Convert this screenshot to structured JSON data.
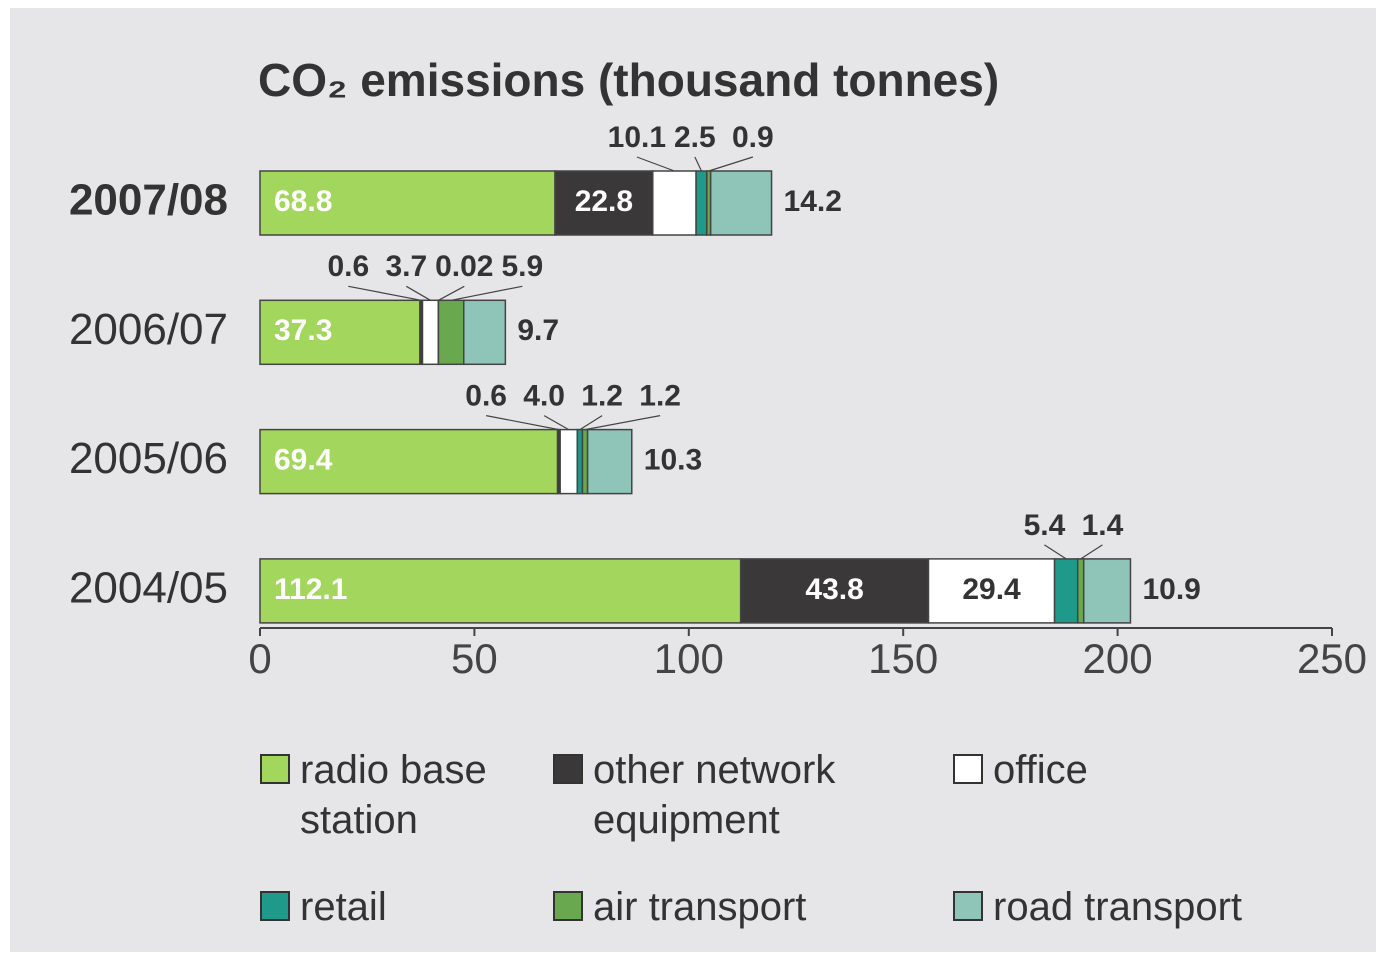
{
  "chart_data": {
    "type": "stacked_barh",
    "title": "CO₂ emissions (thousand tonnes)",
    "categories": [
      "2007/08",
      "2006/07",
      "2005/06",
      "2004/05"
    ],
    "series": [
      {
        "name": "radio base station",
        "color": "#a3d65c",
        "values": [
          68.8,
          37.3,
          69.4,
          112.1
        ],
        "value_labels": [
          "68.8",
          "37.3",
          "69.4",
          "112.1"
        ]
      },
      {
        "name": "other network equipment",
        "color": "#3b3839",
        "values": [
          22.8,
          0.6,
          0.6,
          43.8
        ],
        "value_labels": [
          "22.8",
          "0.6",
          "0.6",
          "43.8"
        ]
      },
      {
        "name": "office",
        "color": "#ffffff",
        "values": [
          10.1,
          3.7,
          4.0,
          29.4
        ],
        "value_labels": [
          "10.1",
          "3.7",
          "4.0",
          "29.4"
        ]
      },
      {
        "name": "retail",
        "color": "#1f9a8a",
        "values": [
          2.5,
          0.02,
          1.2,
          5.4
        ],
        "value_labels": [
          "2.5",
          "0.02",
          "1.2",
          "5.4"
        ]
      },
      {
        "name": "air transport",
        "color": "#6aa84f",
        "values": [
          0.9,
          5.9,
          1.2,
          1.4
        ],
        "value_labels": [
          "0.9",
          "5.9",
          "1.2",
          "1.4"
        ]
      },
      {
        "name": "road transport",
        "color": "#8fc4b8",
        "values": [
          14.2,
          9.7,
          10.3,
          10.9
        ],
        "value_labels": [
          "14.2",
          "9.7",
          "10.3",
          "10.9"
        ]
      }
    ],
    "xlim": [
      0,
      250
    ],
    "xticks": [
      0,
      50,
      100,
      150,
      200,
      250
    ]
  }
}
